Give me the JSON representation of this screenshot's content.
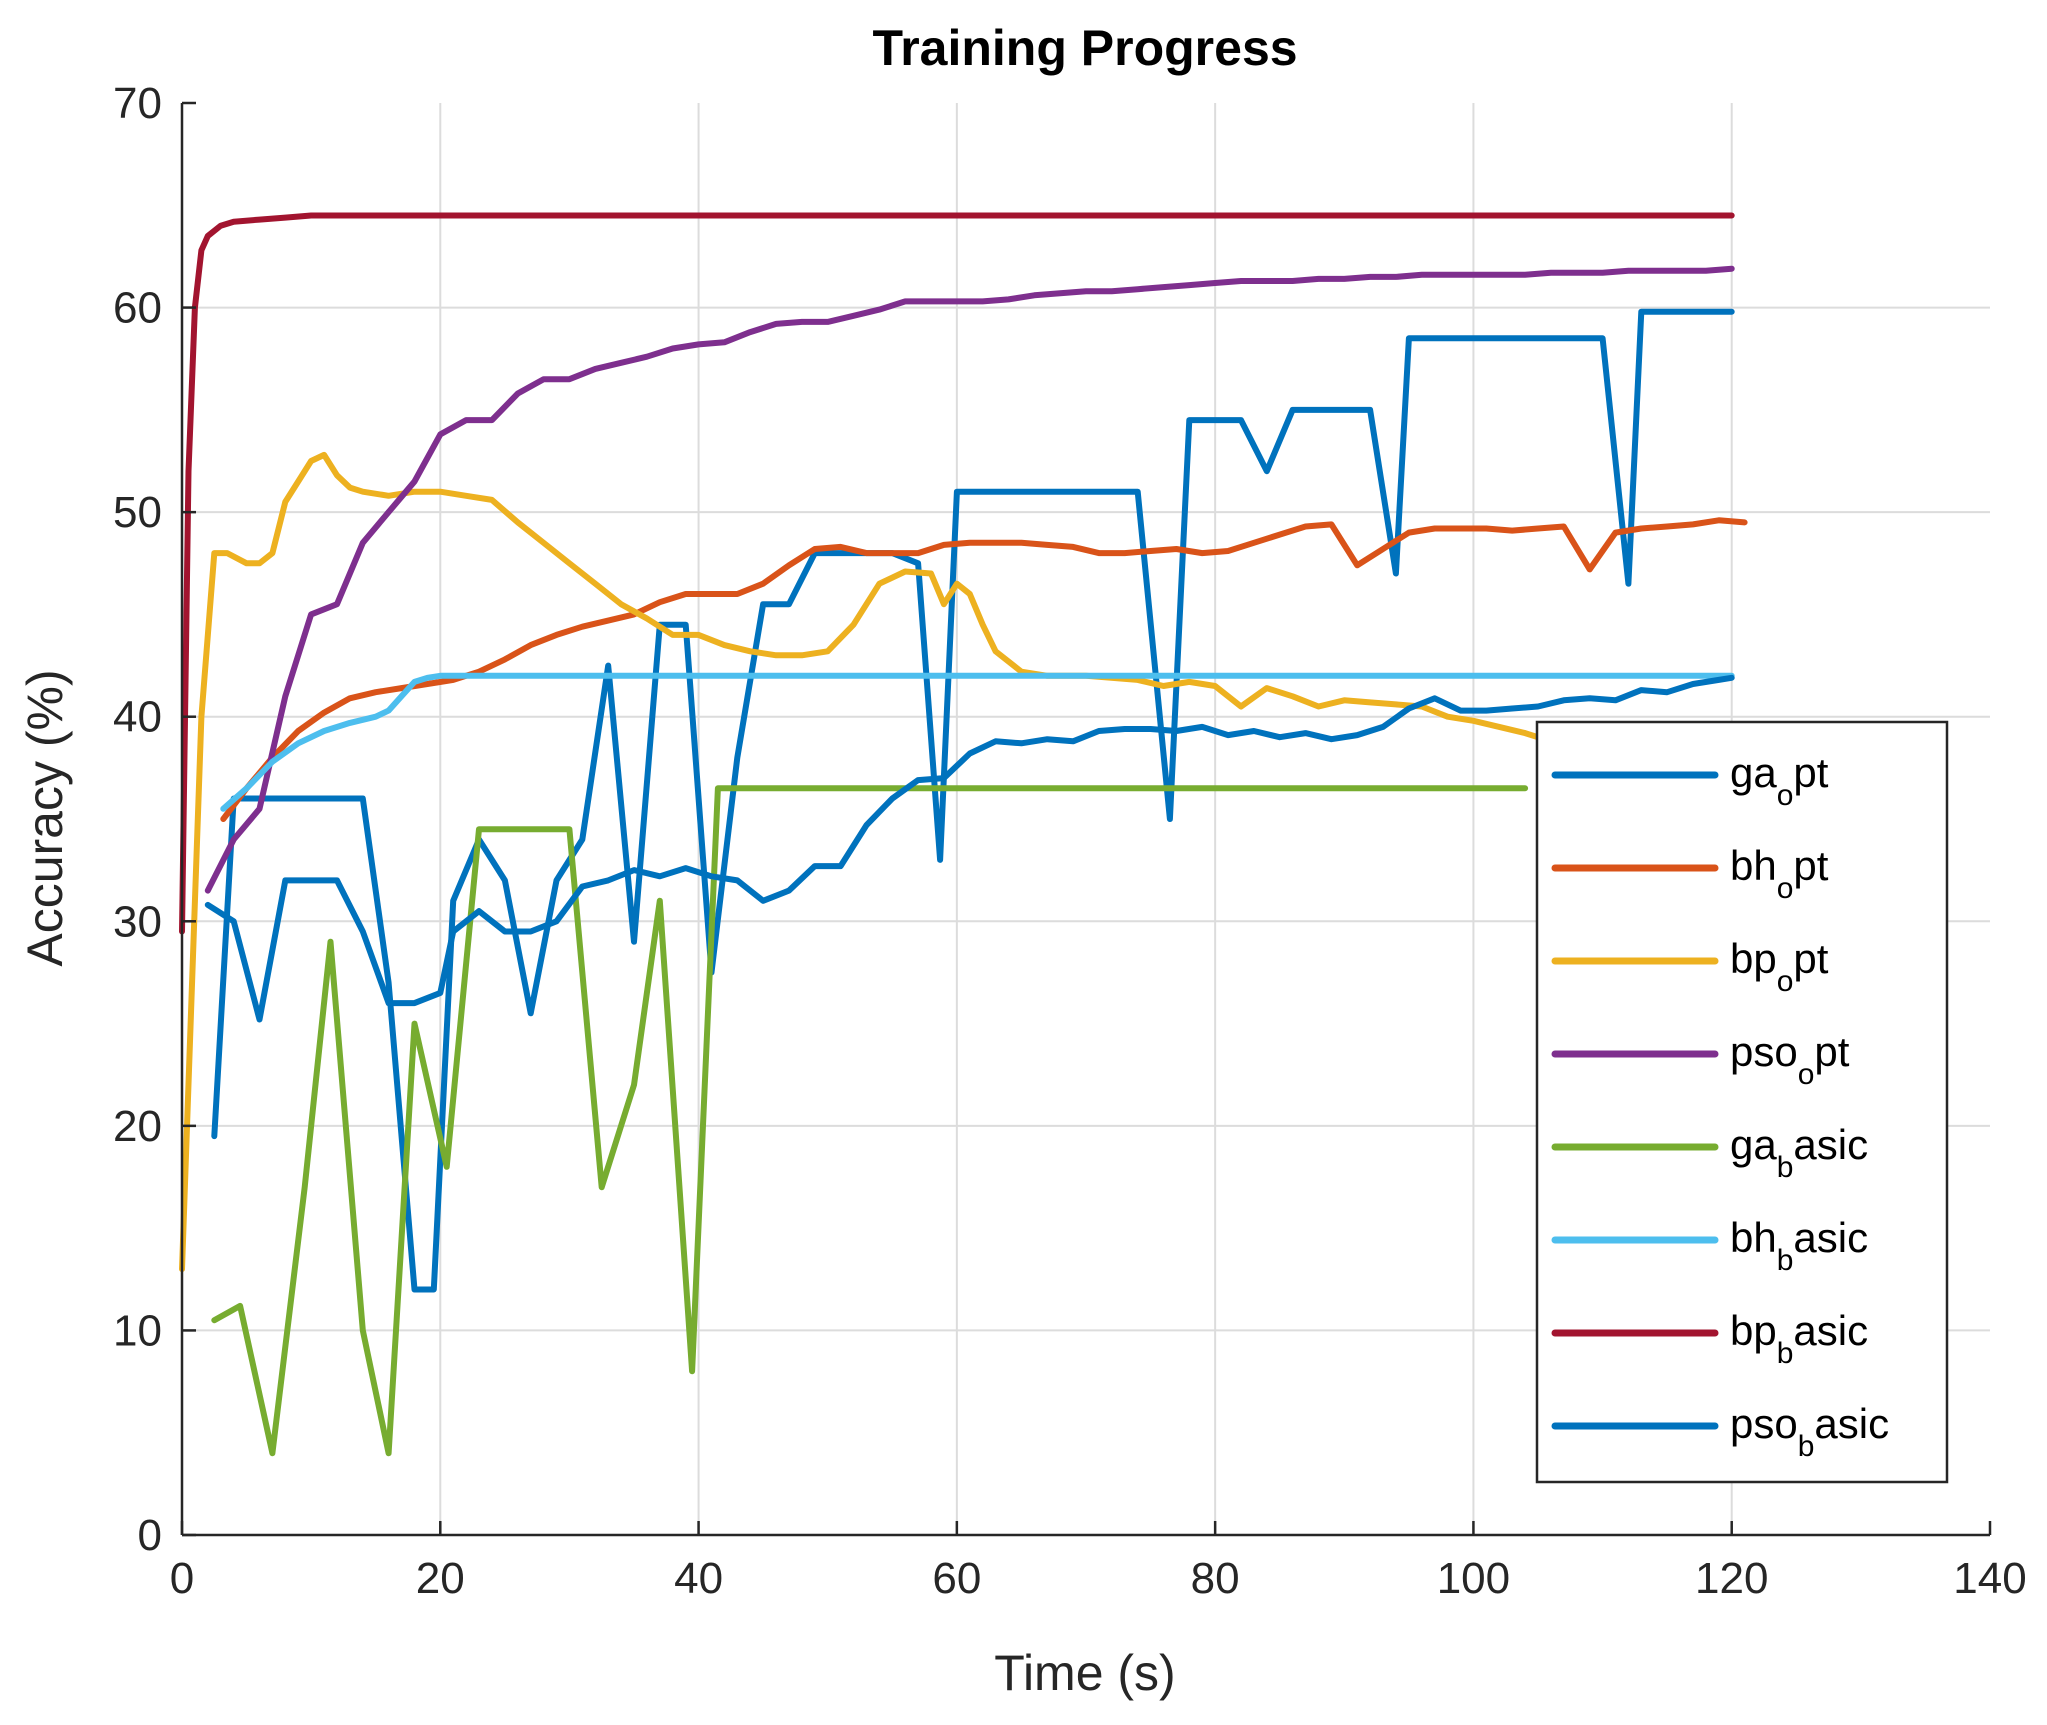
{
  "chart_data": {
    "type": "line",
    "title": "Training Progress",
    "xlabel": "Time (s)",
    "ylabel": "Accuracy (%)",
    "xlim": [
      0,
      140
    ],
    "ylim": [
      0,
      70
    ],
    "xticks": [
      0,
      20,
      40,
      60,
      80,
      100,
      120,
      140
    ],
    "yticks": [
      0,
      10,
      20,
      30,
      40,
      50,
      60,
      70
    ],
    "grid": true,
    "legend_position": "right",
    "series": [
      {
        "name": "ga_opt",
        "legend_main": "ga",
        "legend_sub": "o",
        "legend_rest": "pt",
        "color": "#0072BD",
        "x": [
          2.5,
          4,
          5.5,
          7,
          9,
          12,
          14,
          16,
          18,
          19.5,
          21,
          23,
          25,
          27,
          29,
          31,
          33,
          35,
          37,
          39,
          41,
          43,
          45,
          47,
          49,
          51,
          53,
          55,
          57,
          58.7,
          60,
          61.5,
          63,
          66,
          70,
          74,
          76.5,
          78,
          79.5,
          82,
          84,
          86,
          88,
          90,
          92,
          94,
          95,
          96.5,
          98,
          104,
          106,
          110,
          112,
          113,
          114.5,
          116,
          118,
          120
        ],
        "y": [
          19.5,
          36,
          36,
          36,
          36,
          36,
          36,
          27,
          12,
          12,
          31,
          34,
          32,
          25.5,
          32,
          34,
          42.5,
          29,
          44.5,
          44.5,
          27.5,
          38,
          45.5,
          45.5,
          48,
          48,
          48,
          48,
          47.5,
          33,
          51,
          51,
          51,
          51,
          51,
          51,
          35,
          54.5,
          54.5,
          54.5,
          52,
          55,
          55,
          55,
          55,
          47,
          58.5,
          58.5,
          58.5,
          58.5,
          58.5,
          58.5,
          46.5,
          59.8,
          59.8,
          59.8,
          59.8,
          59.8
        ]
      },
      {
        "name": "bh_opt",
        "legend_main": "bh",
        "legend_sub": "o",
        "legend_rest": "pt",
        "color": "#D95319",
        "x": [
          3.2,
          5,
          7,
          9,
          11,
          13,
          15,
          17,
          19,
          21,
          23,
          25,
          27,
          29,
          31,
          33,
          35,
          37,
          39,
          41,
          43,
          45,
          47,
          49,
          51,
          53,
          55,
          57,
          59,
          61,
          63,
          65,
          67,
          69,
          71,
          73,
          75,
          77,
          79,
          81,
          83,
          85,
          87,
          89,
          91,
          93,
          95,
          97,
          99,
          101,
          103,
          105,
          107,
          109,
          111,
          113,
          115,
          117,
          119,
          121
        ],
        "y": [
          35,
          36.5,
          38,
          39.3,
          40.2,
          40.9,
          41.2,
          41.4,
          41.6,
          41.8,
          42.2,
          42.8,
          43.5,
          44,
          44.4,
          44.7,
          45,
          45.6,
          46,
          46,
          46,
          46.5,
          47.4,
          48.2,
          48.3,
          48,
          48,
          48,
          48.4,
          48.5,
          48.5,
          48.5,
          48.4,
          48.3,
          48,
          48,
          48.1,
          48.2,
          48,
          48.1,
          48.5,
          48.9,
          49.3,
          49.4,
          47.4,
          48.2,
          49,
          49.2,
          49.2,
          49.2,
          49.1,
          49.2,
          49.3,
          47.2,
          49,
          49.2,
          49.3,
          49.4,
          49.6,
          49.5
        ]
      },
      {
        "name": "bp_opt",
        "legend_main": "bp",
        "legend_sub": "o",
        "legend_rest": "pt",
        "color": "#EDB120",
        "x": [
          0,
          1.5,
          2.5,
          3.5,
          5,
          6,
          7,
          8,
          9,
          10,
          11,
          12,
          13,
          14,
          16,
          18,
          20,
          22,
          24,
          26,
          28,
          30,
          32,
          34,
          36,
          38,
          40,
          42,
          44,
          46,
          48,
          50,
          52,
          54,
          56,
          58,
          59,
          60,
          61,
          62,
          63,
          65,
          67,
          70,
          74,
          76,
          78,
          80,
          82,
          84,
          86,
          88,
          90,
          92,
          94,
          96,
          98,
          100,
          102,
          104,
          106
        ],
        "y": [
          13,
          40,
          48,
          48,
          47.5,
          47.5,
          48,
          50.5,
          51.5,
          52.5,
          52.8,
          51.8,
          51.2,
          51,
          50.8,
          51,
          51,
          50.8,
          50.6,
          49.5,
          48.5,
          47.5,
          46.5,
          45.5,
          44.8,
          44,
          44,
          43.5,
          43.2,
          43,
          43,
          43.2,
          44.5,
          46.5,
          47.1,
          47,
          45.5,
          46.5,
          46,
          44.5,
          43.2,
          42.2,
          42,
          42,
          41.8,
          41.5,
          41.7,
          41.5,
          40.5,
          41.4,
          41,
          40.5,
          40.8,
          40.7,
          40.6,
          40.5,
          40,
          39.8,
          39.5,
          39.2,
          38.8
        ]
      },
      {
        "name": "pso_opt",
        "legend_main": "pso",
        "legend_sub": "o",
        "legend_rest": "pt",
        "color": "#7E2F8E",
        "x": [
          2,
          4,
          6,
          8,
          10,
          12,
          14,
          16,
          18,
          20,
          22,
          24,
          26,
          28,
          30,
          32,
          34,
          36,
          38,
          40,
          42,
          44,
          46,
          48,
          50,
          52,
          54,
          56,
          58,
          60,
          62,
          64,
          66,
          68,
          70,
          72,
          74,
          76,
          78,
          80,
          82,
          84,
          86,
          88,
          90,
          92,
          94,
          96,
          98,
          100,
          102,
          104,
          106,
          108,
          110,
          112,
          114,
          116,
          118,
          120
        ],
        "y": [
          31.5,
          34,
          35.5,
          41,
          45,
          45.5,
          48.5,
          50,
          51.5,
          53.8,
          54.5,
          54.5,
          55.8,
          56.5,
          56.5,
          57,
          57.3,
          57.6,
          58,
          58.2,
          58.3,
          58.8,
          59.2,
          59.3,
          59.3,
          59.6,
          59.9,
          60.3,
          60.3,
          60.3,
          60.3,
          60.4,
          60.6,
          60.7,
          60.8,
          60.8,
          60.9,
          61,
          61.1,
          61.2,
          61.3,
          61.3,
          61.3,
          61.4,
          61.4,
          61.5,
          61.5,
          61.6,
          61.6,
          61.6,
          61.6,
          61.6,
          61.7,
          61.7,
          61.7,
          61.8,
          61.8,
          61.8,
          61.8,
          61.9
        ]
      },
      {
        "name": "ga_basic",
        "legend_main": "ga",
        "legend_sub": "b",
        "legend_rest": "asic",
        "color": "#77AC30",
        "x": [
          2.5,
          4.5,
          7,
          9.5,
          11.5,
          14,
          16,
          18,
          20.5,
          23,
          25,
          27,
          28,
          30,
          32.5,
          35,
          37,
          39.5,
          41.5,
          44,
          50,
          60,
          70,
          80,
          90,
          100,
          104
        ],
        "y": [
          10.5,
          11.2,
          4,
          17,
          29,
          10,
          4,
          25,
          18,
          34.5,
          34.5,
          34.5,
          34.5,
          34.5,
          17,
          22,
          31,
          8,
          36.5,
          36.5,
          36.5,
          36.5,
          36.5,
          36.5,
          36.5,
          36.5,
          36.5
        ]
      },
      {
        "name": "bh_basic",
        "legend_main": "bh",
        "legend_sub": "b",
        "legend_rest": "asic",
        "color": "#4DBEEE",
        "x": [
          3.2,
          5,
          7,
          9,
          11,
          13,
          15,
          16,
          17,
          18,
          19,
          20,
          22,
          25,
          30,
          40,
          50,
          60,
          70,
          80,
          90,
          100,
          110,
          120
        ],
        "y": [
          35.5,
          36.5,
          37.8,
          38.7,
          39.3,
          39.7,
          40,
          40.3,
          41,
          41.7,
          41.9,
          42,
          42,
          42,
          42,
          42,
          42,
          42,
          42,
          42,
          42,
          42,
          42,
          42
        ]
      },
      {
        "name": "bp_basic",
        "legend_main": "bp",
        "legend_sub": "b",
        "legend_rest": "asic",
        "color": "#A2142F",
        "x": [
          0,
          0.5,
          1,
          1.5,
          2,
          3,
          4,
          6,
          8,
          10,
          15,
          20,
          40,
          60,
          80,
          100,
          120
        ],
        "y": [
          29.5,
          52,
          60,
          62.8,
          63.5,
          64,
          64.2,
          64.3,
          64.4,
          64.5,
          64.5,
          64.5,
          64.5,
          64.5,
          64.5,
          64.5,
          64.5
        ]
      },
      {
        "name": "pso_basic",
        "legend_main": "pso",
        "legend_sub": "b",
        "legend_rest": "asic",
        "color": "#0072BD",
        "x": [
          2,
          4,
          6,
          8,
          10,
          12,
          14,
          16,
          18,
          20,
          21,
          23,
          25,
          27,
          29,
          31,
          33,
          35,
          37,
          39,
          41,
          43,
          45,
          47,
          49,
          51,
          53,
          55,
          57,
          59,
          61,
          63,
          65,
          67,
          69,
          71,
          73,
          75,
          77,
          79,
          81,
          83,
          85,
          87,
          89,
          91,
          93,
          95,
          97,
          99,
          101,
          103,
          105,
          107,
          109,
          111,
          113,
          115,
          117,
          119,
          120
        ],
        "y": [
          30.8,
          30,
          25.2,
          32,
          32,
          32,
          29.5,
          26,
          26,
          26.5,
          29.5,
          30.5,
          29.5,
          29.5,
          30,
          31.7,
          32,
          32.5,
          32.2,
          32.6,
          32.2,
          32,
          31,
          31.5,
          32.7,
          32.7,
          34.7,
          36,
          36.9,
          37,
          38.2,
          38.8,
          38.7,
          38.9,
          38.8,
          39.3,
          39.4,
          39.4,
          39.3,
          39.5,
          39.1,
          39.3,
          39,
          39.2,
          38.9,
          39.1,
          39.5,
          40.4,
          40.9,
          40.3,
          40.3,
          40.4,
          40.5,
          40.8,
          40.9,
          40.8,
          41.3,
          41.2,
          41.6,
          41.8,
          41.9
        ]
      }
    ]
  }
}
